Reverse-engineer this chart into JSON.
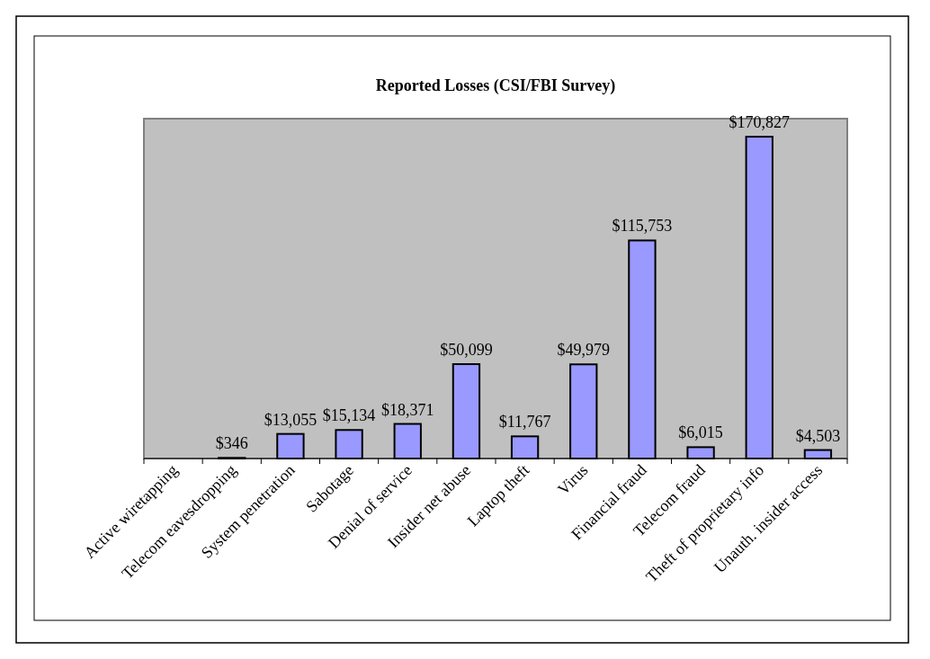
{
  "chart_data": {
    "type": "bar",
    "title": "Reported Losses (CSI/FBI Survey)",
    "categories": [
      "Active wiretapping",
      "Telecom eavesdropping",
      "System penetration",
      "Sabotage",
      "Denial of service",
      "Insider net abuse",
      "Laptop theft",
      "Virus",
      "Financial fraud",
      "Telecom fraud",
      "Theft of proprietary info",
      "Unauth. insider access"
    ],
    "values": [
      null,
      346,
      13055,
      15134,
      18371,
      50099,
      11767,
      49979,
      115753,
      6015,
      170827,
      4503
    ],
    "value_labels": [
      null,
      "$346",
      "$13,055",
      "$15,134",
      "$18,371",
      "$50,099",
      "$11,767",
      "$49,979",
      "$115,753",
      "$6,015",
      "$170,827",
      "$4,503"
    ],
    "color": "#9999ff"
  }
}
